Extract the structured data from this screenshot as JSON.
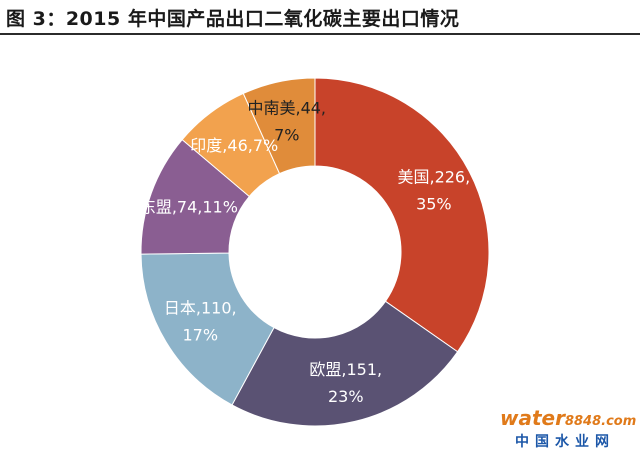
{
  "page": {
    "title": "图 3：2015 年中国产品出口二氧化碳主要出口情况"
  },
  "chart_data": {
    "type": "pie",
    "donut": true,
    "categories": [
      "美国",
      "欧盟",
      "日本",
      "东盟",
      "印度",
      "中南美"
    ],
    "values": [
      226,
      151,
      110,
      74,
      46,
      44
    ],
    "percents": [
      "35%",
      "23%",
      "17%",
      "11%",
      "7%",
      "7%"
    ],
    "labels": [
      [
        "美国,226,",
        "35%"
      ],
      [
        "欧盟,151,",
        "23%"
      ],
      [
        "日本,110,",
        "17%"
      ],
      [
        "东盟,74,11%"
      ],
      [
        "印度,46,7%"
      ],
      [
        "中南美,44,",
        "7%"
      ]
    ],
    "colors": [
      "#c8432a",
      "#5a5273",
      "#8db3c9",
      "#8a5e92",
      "#f2a24e",
      "#e08c3a"
    ]
  },
  "watermark": {
    "brand": "water",
    "number": "8848",
    "suffix": ".com",
    "cn": "中国水业网"
  }
}
